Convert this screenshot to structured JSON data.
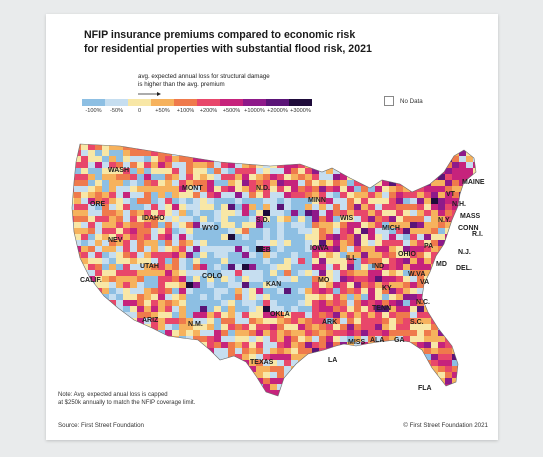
{
  "title": {
    "line1": "NFIP insurance premiums compared to economic risk",
    "line2": "for residential properties with substantial flood risk, 2021"
  },
  "legend": {
    "note_line1": "avg. expected annual loss for structural damage",
    "note_line2": "is higher than the avg. premium",
    "arrow": "arrow-right-icon",
    "bins": [
      {
        "color": "#8dbfe3",
        "label": "-100%"
      },
      {
        "color": "#c6def0",
        "label": "-50%"
      },
      {
        "color": "#f8e7a6",
        "label": "0"
      },
      {
        "color": "#f6b25d",
        "label": "+50%"
      },
      {
        "color": "#ef7a4c",
        "label": "+100%"
      },
      {
        "color": "#e8476a",
        "label": "+200%"
      },
      {
        "color": "#c6237c",
        "label": "+500%"
      },
      {
        "color": "#8e1a8a",
        "label": "+1000%"
      },
      {
        "color": "#5a1477",
        "label": "+2000%"
      },
      {
        "color": "#1e0b3a",
        "label": "+3000%"
      }
    ],
    "no_data": {
      "color": "#ffffff",
      "label": "No Data"
    }
  },
  "map": {
    "state_labels": [
      "WASH",
      "ORE",
      "CALIF.",
      "NEV",
      "IDAHO",
      "MONT",
      "WYO",
      "UTAH",
      "COLO",
      "ARIZ",
      "N.M.",
      "N.D.",
      "S.D.",
      "NEB",
      "KAN",
      "OKLA",
      "TEXAS",
      "MINN",
      "IOWA",
      "MO",
      "ARK",
      "LA",
      "WIS",
      "ILL",
      "MICH",
      "IND",
      "OHIO",
      "KY",
      "TENN",
      "MISS",
      "ALA",
      "GA",
      "FLA",
      "S.C.",
      "N.C.",
      "VA",
      "W.VA",
      "PA",
      "N.Y.",
      "VT",
      "N.H.",
      "MAINE",
      "MASS",
      "CONN",
      "R.I.",
      "N.J.",
      "DEL.",
      "MD"
    ]
  },
  "note": {
    "line1": "Note: Avg. expected anual loss is capped",
    "line2": "at $250k annually to match the NFIP coverage limit."
  },
  "footer": {
    "source": "Source: First Street Foundation",
    "credit": "© First Street Foundation 2021"
  }
}
